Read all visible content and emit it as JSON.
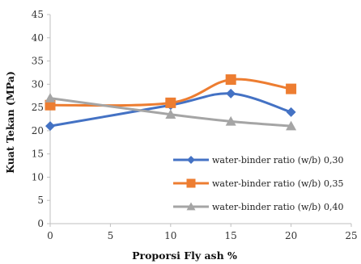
{
  "chart_data": {
    "type": "line",
    "title": "",
    "xlabel": "Proporsi Fly ash %",
    "ylabel": "Kuat Tekan (MPa)",
    "xlim": [
      0,
      25
    ],
    "ylim": [
      0,
      45
    ],
    "x_ticks": [
      "0",
      "5",
      "10",
      "15",
      "20",
      "25"
    ],
    "y_ticks": [
      "0",
      "5",
      "10",
      "15",
      "20",
      "25",
      "30",
      "35",
      "40",
      "45"
    ],
    "grid": false,
    "legend_position": "bottom-right",
    "series": [
      {
        "name": "water-binder ratio (w/b) 0,30",
        "color": "#4472C4",
        "marker": "diamond",
        "x": [
          0,
          10,
          15,
          20
        ],
        "y": [
          21,
          25.5,
          28,
          24
        ]
      },
      {
        "name": "water-binder ratio (w/b) 0,35",
        "color": "#ED7D31",
        "marker": "square",
        "x": [
          0,
          10,
          15,
          20
        ],
        "y": [
          25.5,
          26,
          31,
          29
        ]
      },
      {
        "name": "water-binder ratio (w/b) 0,40",
        "color": "#A5A5A5",
        "marker": "triangle",
        "x": [
          0,
          10,
          15,
          20
        ],
        "y": [
          27,
          23.5,
          22,
          21
        ]
      }
    ]
  }
}
